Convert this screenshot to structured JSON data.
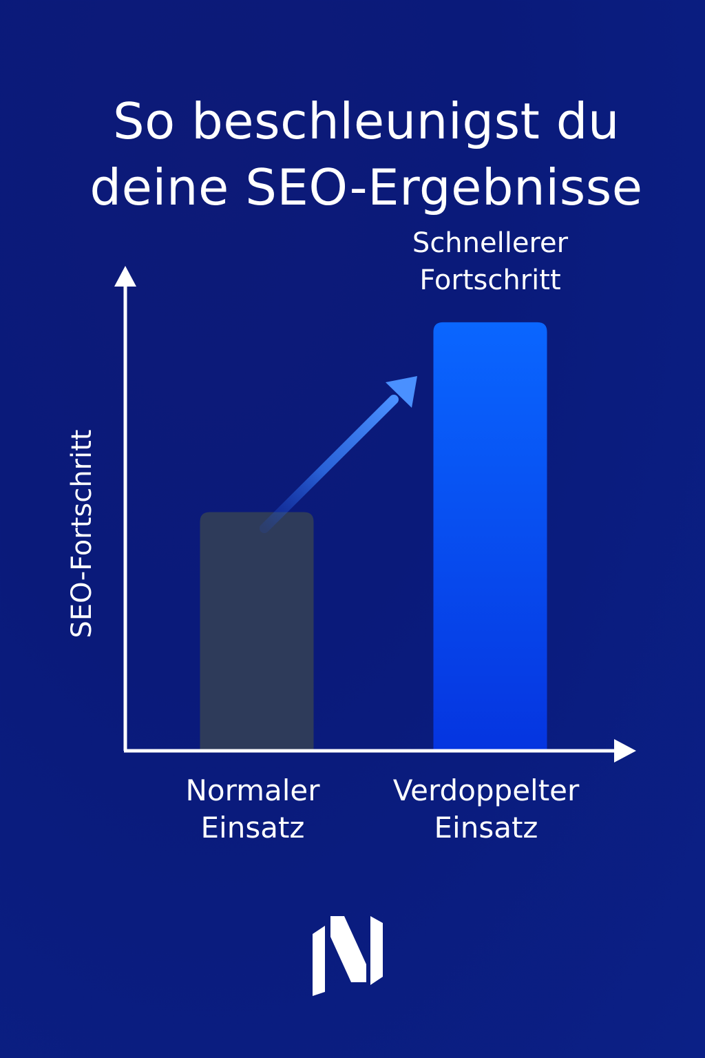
{
  "title_lines": [
    "So beschleunigst du",
    "deine SEO-Ergebnisse"
  ],
  "chart_data": {
    "type": "bar",
    "categories": [
      [
        "Normaler",
        "Einsatz"
      ],
      [
        "Verdoppelter",
        "Einsatz"
      ]
    ],
    "values": [
      1,
      1.8
    ],
    "ylabel": "SEO-Fortschritt",
    "xlabel": "",
    "ylim": [
      0,
      2.2
    ],
    "colors": [
      "#2e3b5a",
      "#0a5cff"
    ],
    "annotations": [
      {
        "text_lines": [
          "Schnellerer",
          "Fortschritt"
        ],
        "target_category": 1
      }
    ],
    "arrow": {
      "from_category": 0,
      "to_category": 1,
      "color": "#3d8cff"
    },
    "grid": false
  },
  "colors": {
    "background": "#0a1a7a",
    "text": "#ffffff",
    "axis": "#ffffff"
  },
  "logo": {
    "icon": "n-brand-logo-icon"
  }
}
